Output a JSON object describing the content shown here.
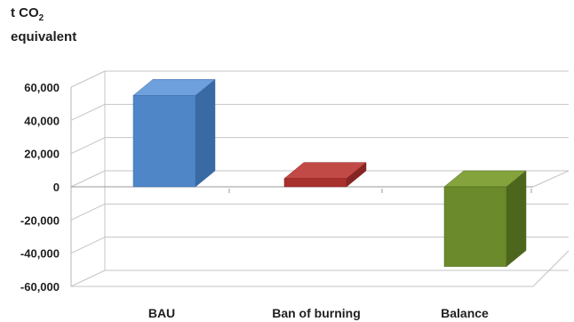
{
  "chart_data": {
    "type": "bar",
    "title": "",
    "ylabel_lines": [
      "t CO",
      "2",
      "equivalent"
    ],
    "xlabel": "",
    "categories": [
      "BAU",
      "Ban of burning",
      "Balance"
    ],
    "series": [
      {
        "values": [
          55000,
          5000,
          -48000
        ]
      }
    ],
    "bar_colors": [
      {
        "front": "#4f86c8",
        "side": "#3a6aa3",
        "top": "#6ea0dd"
      },
      {
        "front": "#a8302d",
        "side": "#862522",
        "top": "#c24a46"
      },
      {
        "front": "#6a8a2c",
        "side": "#4d661d",
        "top": "#84a33d"
      }
    ],
    "yticks": [
      60000,
      40000,
      20000,
      0,
      -20000,
      -40000,
      -60000
    ],
    "ytick_labels": [
      "60,000",
      "40,000",
      "20,000",
      "0",
      "-20,000",
      "-40,000",
      "-60,000"
    ],
    "ylim": [
      -60000,
      60000
    ],
    "grid": true,
    "legend": "none"
  }
}
